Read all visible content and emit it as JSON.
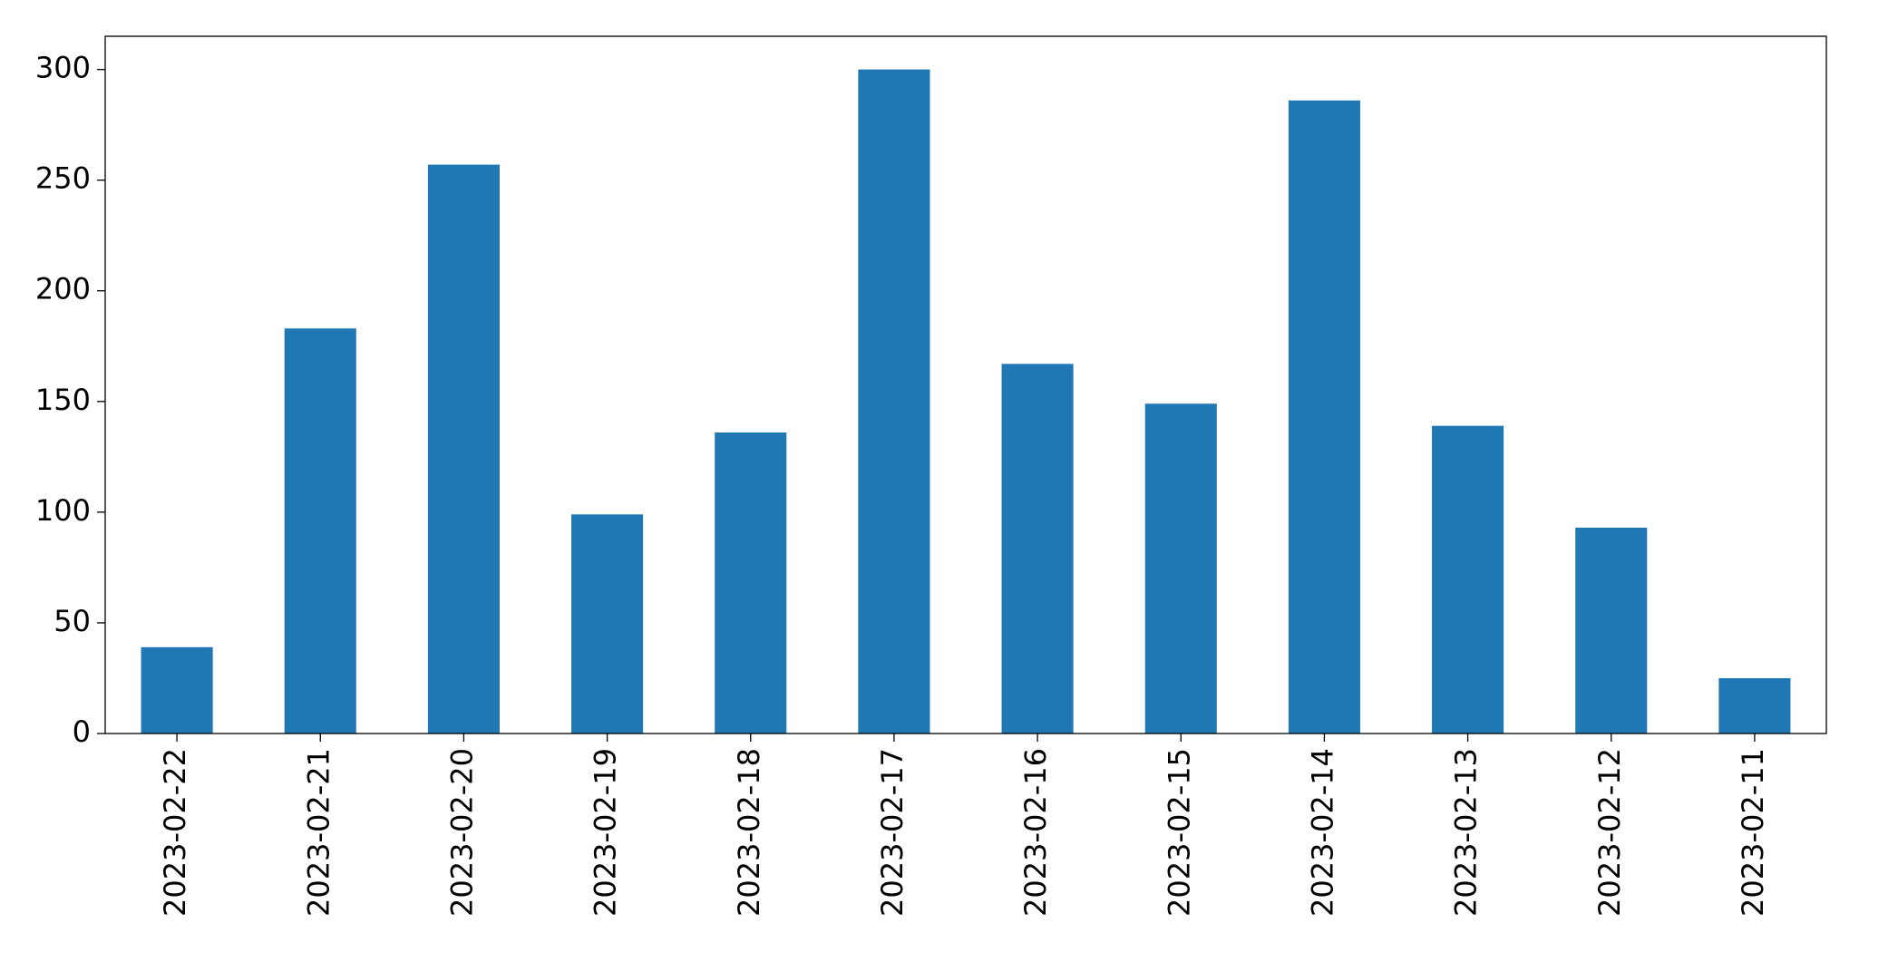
{
  "chart_data": {
    "type": "bar",
    "categories": [
      "2023-02-22",
      "2023-02-21",
      "2023-02-20",
      "2023-02-19",
      "2023-02-18",
      "2023-02-17",
      "2023-02-16",
      "2023-02-15",
      "2023-02-14",
      "2023-02-13",
      "2023-02-12",
      "2023-02-11"
    ],
    "values": [
      39,
      183,
      257,
      99,
      136,
      300,
      167,
      149,
      286,
      139,
      93,
      25
    ],
    "color": "#1f77b4",
    "ylim": [
      0,
      315
    ],
    "yticks": [
      0,
      50,
      100,
      150,
      200,
      250,
      300
    ],
    "grid": false
  }
}
